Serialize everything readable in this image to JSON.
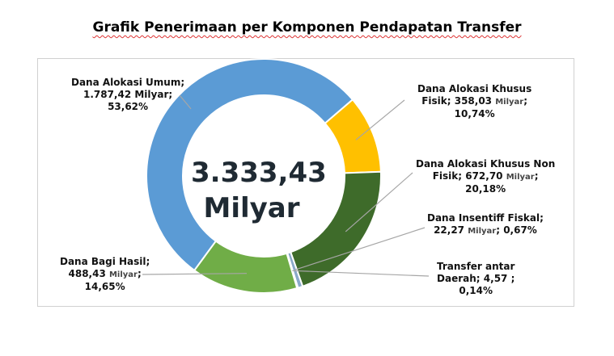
{
  "chart_data": {
    "type": "pie",
    "title": "Grafik Penerimaan per Komponen Pendapatan Transfer",
    "center_total": "3.333,43",
    "center_unit": "Milyar",
    "series": [
      {
        "name": "Dana Alokasi Umum",
        "value": 1787.42,
        "percent": 53.62,
        "color": "#5B9BD5",
        "label_lines": [
          "Dana Alokasi Umum;",
          "1.787,42 Milyar;",
          "53,62%"
        ]
      },
      {
        "name": "Dana Alokasi Khusus Fisik",
        "value": 358.03,
        "percent": 10.74,
        "color": "#FFC000",
        "label_lines": [
          "Dana Alokasi Khusus",
          "Fisik;  358,03 ",
          "Milyar",
          ";",
          "10,74%"
        ]
      },
      {
        "name": "Dana Alokasi Khusus Non Fisik",
        "value": 672.7,
        "percent": 20.18,
        "color": "#3E6B2A",
        "label_lines": [
          "Dana Alokasi Khusus Non",
          "Fisik;  672,70 ",
          "Milyar",
          ";",
          "20,18%"
        ]
      },
      {
        "name": "Dana Insentiff Fiskal",
        "value": 22.27,
        "percent": 0.67,
        "color": "#8AA9C9",
        "label_lines": [
          "Dana Insentiff Fiskal;",
          "22,27 ",
          "Milyar",
          "; 0,67%"
        ]
      },
      {
        "name": "Transfer antar Daerah",
        "value": 4.57,
        "percent": 0.14,
        "color": "#1F3B5A",
        "label_lines": [
          "Transfer antar",
          "Daerah;  4,57 ;",
          "0,14%"
        ]
      },
      {
        "name": "Dana Bagi Hasil",
        "value": 488.43,
        "percent": 14.65,
        "color": "#70AD47",
        "label_lines": [
          "Dana Bagi Hasil;",
          "488,43 ",
          "Milyar",
          ";",
          "14,65%"
        ]
      }
    ]
  }
}
